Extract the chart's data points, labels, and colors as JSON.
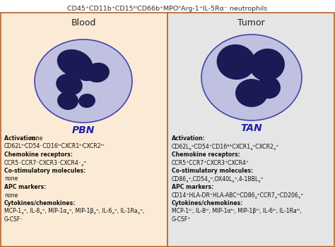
{
  "title": "CD45⁺CD11b⁺CD15ʰⁱCD66b⁺MPOʰArg-1⁺IL-5Rα⁻ neutrophils",
  "left_header": "Blood",
  "right_header": "Tumor",
  "left_label": "PBN",
  "right_label": "TAN",
  "left_bg": "#FBEBD6",
  "right_bg": "#E5E5E5",
  "cell_outer_color": "#C0C0E0",
  "cell_border_color": "#4444AA",
  "cell_inner_color": "#1A1A55",
  "panel_border_color": "#B8622A",
  "label_color": "#2222AA",
  "title_color": "#333333",
  "pbn_lines": [
    {
      "bold": true,
      "text": "Activation: ",
      "suffix": "none",
      "suffix_bold": false
    },
    {
      "bold": false,
      "text": "CD62LʰⁱCD54⁻CD16ʰⁱCXCR1ʰⁱCXCR2ʰⁱ"
    },
    {
      "bold": true,
      "text": "Chemokine receptors:"
    },
    {
      "bold": false,
      "text": "CCR5⁻CCR7⁻CXCR3⁻CXCR4⁻˳ᵒ"
    },
    {
      "bold": true,
      "text": "Co-stimulatory molecules:"
    },
    {
      "bold": false,
      "text": "none"
    },
    {
      "bold": true,
      "text": "APC markers:"
    },
    {
      "bold": false,
      "text": "none"
    },
    {
      "bold": true,
      "text": "Cytokines/chemokines:"
    },
    {
      "bold": false,
      "text": "MCP-1˳ᵒ, IL-8˳ᵒ, MIP-1α˳ᵒ, MIP-1β˳ᵒ, IL-6˳ᵒ, IL-1Ra˳ᵒ,"
    },
    {
      "bold": false,
      "text": "G-CSF⁻"
    }
  ],
  "tan_lines": [
    {
      "bold": true,
      "text": "Activation:"
    },
    {
      "bold": false,
      "text": "CD62L˳ᵒCD54⁺CD16ᴮᴵᵗCXCR1˳ᵒCXCR2˳ᵒ"
    },
    {
      "bold": true,
      "text": "Chemokine receptors:"
    },
    {
      "bold": false,
      "text": "CCR5⁺CCR7⁺CXCR3⁺CXCR4⁺"
    },
    {
      "bold": true,
      "text": "Co-stimulatory molecules:"
    },
    {
      "bold": false,
      "text": "CD86˳ᵒ,CD54˳ᵒ,OX40L˳ᵒ,4-1BBL˳ᵒ"
    },
    {
      "bold": true,
      "text": "APC markers:"
    },
    {
      "bold": false,
      "text": "CD14⁺HLA-DR⁺HLA-ABCʰⁱCD86˳ᵒCCR7˳ᵒCD206˳ᵒ"
    },
    {
      "bold": true,
      "text": "Cytokines/chemokines:"
    },
    {
      "bold": false,
      "text": "MCP-1ʰⁱ, IL-8ʰⁱ, MIP-1αʰⁱ, MIP-1βʰⁱ, IL-6ʰⁱ, IL-1Raʰⁱ,"
    },
    {
      "bold": false,
      "text": "G-CSF⁺"
    }
  ]
}
